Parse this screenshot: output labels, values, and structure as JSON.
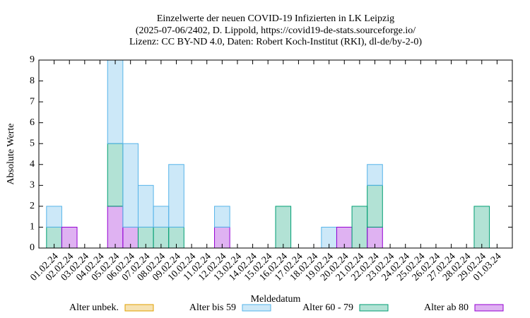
{
  "chart_data": {
    "type": "bar",
    "stacked": true,
    "title": [
      "Einzelwerte der neuen COVID-19 Infizierten in LK Leipzig",
      "(2025-07-06/2402, D. Lippold, https://covid19-de-stats.sourceforge.io/",
      "Lizenz: CC BY-ND 4.0, Daten: Robert Koch-Institut (RKI), dl-de/by-2-0)"
    ],
    "xlabel": "Meldedatum",
    "ylabel": "Absolute Werte",
    "categories": [
      "01.02.24",
      "02.02.24",
      "03.02.24",
      "04.02.24",
      "05.02.24",
      "06.02.24",
      "07.02.24",
      "08.02.24",
      "09.02.24",
      "10.02.24",
      "11.02.24",
      "12.02.24",
      "13.02.24",
      "14.02.24",
      "15.02.24",
      "16.02.24",
      "17.02.24",
      "18.02.24",
      "19.02.24",
      "20.02.24",
      "21.02.24",
      "22.02.24",
      "23.02.24",
      "24.02.24",
      "25.02.24",
      "26.02.24",
      "27.02.24",
      "28.02.24",
      "29.02.24",
      "01.03.24"
    ],
    "series": [
      {
        "name": "Alter unbek.",
        "color": "#e0a000",
        "values": [
          0,
          0,
          0,
          0,
          0,
          0,
          0,
          0,
          0,
          0,
          0,
          0,
          0,
          0,
          0,
          0,
          0,
          0,
          0,
          0,
          0,
          0,
          0,
          0,
          0,
          0,
          0,
          0,
          0,
          0
        ]
      },
      {
        "name": "Alter bis 59",
        "color": "#56b4e9",
        "values": [
          1,
          0,
          0,
          0,
          4,
          4,
          2,
          1,
          3,
          0,
          0,
          1,
          0,
          0,
          0,
          0,
          0,
          0,
          1,
          0,
          0,
          1,
          0,
          0,
          0,
          0,
          0,
          0,
          0,
          0
        ]
      },
      {
        "name": "Alter 60 - 79",
        "color": "#009e73",
        "values": [
          1,
          0,
          0,
          0,
          3,
          0,
          1,
          1,
          1,
          0,
          0,
          0,
          0,
          0,
          0,
          2,
          0,
          0,
          0,
          0,
          2,
          2,
          0,
          0,
          0,
          0,
          0,
          0,
          2,
          0
        ]
      },
      {
        "name": "Alter ab 80",
        "color": "#9400d3",
        "values": [
          0,
          1,
          0,
          0,
          2,
          1,
          0,
          0,
          0,
          0,
          0,
          1,
          0,
          0,
          0,
          0,
          0,
          0,
          0,
          1,
          0,
          1,
          0,
          0,
          0,
          0,
          0,
          0,
          0,
          0
        ]
      }
    ],
    "ylim": [
      0,
      9
    ],
    "yticks": [
      0,
      1,
      2,
      3,
      4,
      5,
      6,
      7,
      8,
      9
    ]
  }
}
